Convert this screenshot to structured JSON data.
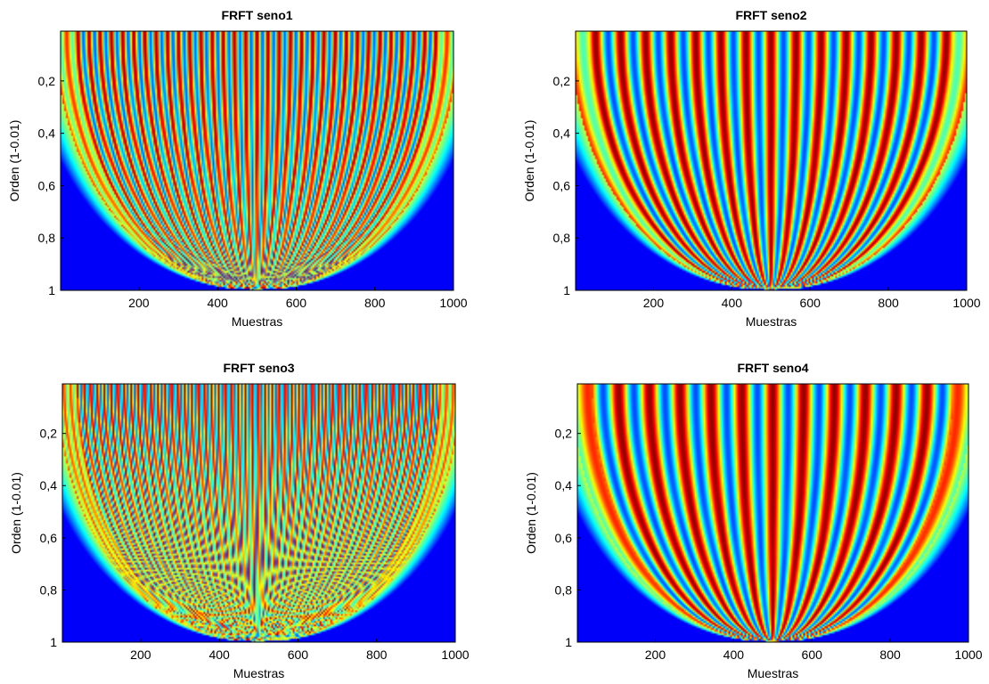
{
  "chart_data": [
    {
      "type": "heatmap",
      "title": "FRFT seno1",
      "xlabel": "Muestras",
      "ylabel": "Orden (1-0.01)",
      "xlim": [
        1,
        1000
      ],
      "ylim": [
        0.01,
        1
      ],
      "x_ticks": [
        200,
        400,
        600,
        800,
        1000
      ],
      "y_ticks": [
        0.2,
        0.4,
        0.6,
        0.8,
        1
      ],
      "y_tick_labels": [
        "0,2",
        "0,4",
        "0,6",
        "0,8",
        "1"
      ],
      "x_tick_labels": [
        "200",
        "400",
        "600",
        "800",
        "1000"
      ],
      "colormap": "jet",
      "pattern": {
        "fringes": 36,
        "edge_width": 0.5,
        "apex_x": 500,
        "apex_y": 1.0,
        "interference": 0.25
      }
    },
    {
      "type": "heatmap",
      "title": "FRFT seno2",
      "xlabel": "Muestras",
      "ylabel": "Orden (1-0.01)",
      "xlim": [
        1,
        1000
      ],
      "ylim": [
        0.01,
        1
      ],
      "x_ticks": [
        200,
        400,
        600,
        800,
        1000
      ],
      "y_ticks": [
        0.2,
        0.4,
        0.6,
        0.8,
        1
      ],
      "y_tick_labels": [
        "0,2",
        "0,4",
        "0,6",
        "0,8",
        "1"
      ],
      "x_tick_labels": [
        "200",
        "400",
        "600",
        "800",
        "1000"
      ],
      "colormap": "jet",
      "pattern": {
        "fringes": 16,
        "edge_width": 0.5,
        "apex_x": 500,
        "apex_y": 1.0,
        "interference": 0.05
      }
    },
    {
      "type": "heatmap",
      "title": "FRFT seno3",
      "xlabel": "Muestras",
      "ylabel": "Orden (1-0.01)",
      "xlim": [
        1,
        1000
      ],
      "ylim": [
        0.01,
        1
      ],
      "x_ticks": [
        200,
        400,
        600,
        800,
        1000
      ],
      "y_ticks": [
        0.2,
        0.4,
        0.6,
        0.8,
        1
      ],
      "y_tick_labels": [
        "0,2",
        "0,4",
        "0,6",
        "0,8",
        "1"
      ],
      "x_tick_labels": [
        "200",
        "400",
        "600",
        "800",
        "1000"
      ],
      "colormap": "jet",
      "pattern": {
        "fringes": 60,
        "edge_width": 0.5,
        "apex_x": 500,
        "apex_y": 1.0,
        "interference": 0.55
      }
    },
    {
      "type": "heatmap",
      "title": "FRFT seno4",
      "xlabel": "Muestras",
      "ylabel": "Orden (1-0.01)",
      "xlim": [
        1,
        1000
      ],
      "ylim": [
        0.01,
        1
      ],
      "x_ticks": [
        200,
        400,
        600,
        800,
        1000
      ],
      "y_ticks": [
        0.2,
        0.4,
        0.6,
        0.8,
        1
      ],
      "y_tick_labels": [
        "0,2",
        "0,4",
        "0,6",
        "0,8",
        "1"
      ],
      "x_tick_labels": [
        "200",
        "400",
        "600",
        "800",
        "1000"
      ],
      "colormap": "jet",
      "pattern": {
        "fringes": 13,
        "edge_width": 0.5,
        "apex_x": 500,
        "apex_y": 1.0,
        "interference": 0.05
      }
    }
  ]
}
